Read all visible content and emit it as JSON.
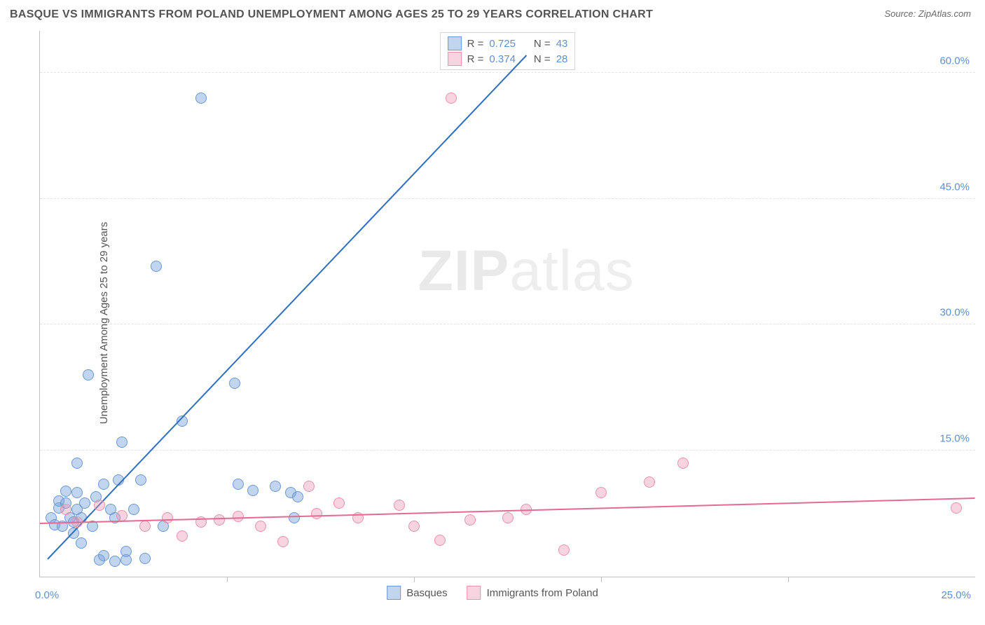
{
  "title": "BASQUE VS IMMIGRANTS FROM POLAND UNEMPLOYMENT AMONG AGES 25 TO 29 YEARS CORRELATION CHART",
  "source": "Source: ZipAtlas.com",
  "ylabel": "Unemployment Among Ages 25 to 29 years",
  "watermark_left": "ZIP",
  "watermark_right": "atlas",
  "chart": {
    "type": "scatter",
    "xlim": [
      0,
      25
    ],
    "ylim": [
      0,
      65
    ],
    "ytick_values": [
      15,
      30,
      45,
      60
    ],
    "ytick_labels": [
      "15.0%",
      "30.0%",
      "45.0%",
      "60.0%"
    ],
    "xtick_values": [
      5,
      10,
      15,
      20
    ],
    "x_origin_label": "0.0%",
    "x_max_label": "25.0%",
    "grid_color": "#e4e4e4",
    "axis_color": "#bfbfbf",
    "background": "#ffffff",
    "marker_radius": 8,
    "series": [
      {
        "name": "Basques",
        "fill": "rgba(120,162,219,0.45)",
        "stroke": "#6a98d6",
        "line_color": "#2f6fc1",
        "r_label": "R = ",
        "r_value": "0.725",
        "n_label": "N = ",
        "n_value": "43",
        "trend": {
          "x1": 0.2,
          "y1": 2.0,
          "x2": 13.0,
          "y2": 62.0
        },
        "points": [
          [
            0.3,
            7.0
          ],
          [
            0.4,
            6.2
          ],
          [
            0.5,
            8.2
          ],
          [
            0.5,
            9.0
          ],
          [
            0.6,
            6.0
          ],
          [
            0.7,
            10.2
          ],
          [
            0.7,
            8.8
          ],
          [
            0.8,
            7.0
          ],
          [
            0.9,
            6.5
          ],
          [
            0.9,
            5.2
          ],
          [
            1.0,
            10.0
          ],
          [
            1.0,
            8.0
          ],
          [
            1.0,
            13.5
          ],
          [
            1.1,
            7.0
          ],
          [
            1.1,
            4.0
          ],
          [
            1.2,
            8.8
          ],
          [
            1.3,
            24.0
          ],
          [
            1.4,
            6.0
          ],
          [
            1.5,
            9.5
          ],
          [
            1.6,
            2.0
          ],
          [
            1.7,
            11.0
          ],
          [
            1.7,
            2.5
          ],
          [
            1.9,
            8.0
          ],
          [
            2.0,
            1.8
          ],
          [
            2.0,
            7.0
          ],
          [
            2.1,
            11.5
          ],
          [
            2.2,
            16.0
          ],
          [
            2.3,
            3.0
          ],
          [
            2.3,
            2.0
          ],
          [
            2.5,
            8.0
          ],
          [
            2.7,
            11.5
          ],
          [
            2.8,
            2.2
          ],
          [
            3.1,
            37.0
          ],
          [
            3.3,
            6.0
          ],
          [
            3.8,
            18.5
          ],
          [
            4.3,
            57.0
          ],
          [
            5.2,
            23.0
          ],
          [
            5.3,
            11.0
          ],
          [
            5.7,
            10.3
          ],
          [
            6.3,
            10.8
          ],
          [
            6.7,
            10.0
          ],
          [
            6.8,
            7.0
          ],
          [
            6.9,
            9.5
          ]
        ]
      },
      {
        "name": "Immigrants from Poland",
        "fill": "rgba(236,148,175,0.40)",
        "stroke": "#e793ad",
        "line_color": "#e46a93",
        "r_label": "R = ",
        "r_value": "0.374",
        "n_label": "N = ",
        "n_value": "28",
        "trend": {
          "x1": 0.0,
          "y1": 6.3,
          "x2": 25.0,
          "y2": 9.3
        },
        "points": [
          [
            0.7,
            8.0
          ],
          [
            1.0,
            6.5
          ],
          [
            1.6,
            8.5
          ],
          [
            2.2,
            7.3
          ],
          [
            2.8,
            6.0
          ],
          [
            3.4,
            7.0
          ],
          [
            3.8,
            4.8
          ],
          [
            4.3,
            6.5
          ],
          [
            4.8,
            6.8
          ],
          [
            5.3,
            7.2
          ],
          [
            5.9,
            6.0
          ],
          [
            6.5,
            4.2
          ],
          [
            7.2,
            10.8
          ],
          [
            7.4,
            7.5
          ],
          [
            8.0,
            8.8
          ],
          [
            8.5,
            7.0
          ],
          [
            9.6,
            8.5
          ],
          [
            10.0,
            6.0
          ],
          [
            10.7,
            4.3
          ],
          [
            11.0,
            57.0
          ],
          [
            11.5,
            6.8
          ],
          [
            12.5,
            7.0
          ],
          [
            13.0,
            8.0
          ],
          [
            14.0,
            3.2
          ],
          [
            15.0,
            10.0
          ],
          [
            16.3,
            11.3
          ],
          [
            17.2,
            13.5
          ],
          [
            24.5,
            8.2
          ]
        ]
      }
    ]
  }
}
